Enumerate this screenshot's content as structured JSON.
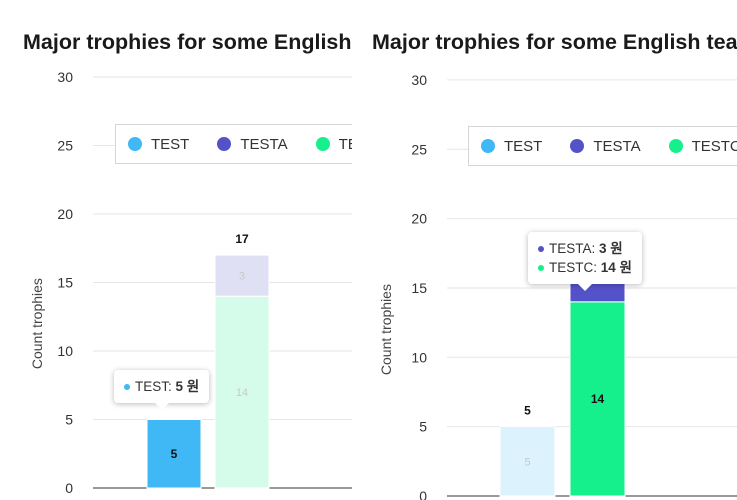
{
  "colors": {
    "TEST": "#3fb8f5",
    "TESTA": "#5452c9",
    "TESTC": "#16f08c",
    "axis": "#333333",
    "grid": "#e6e6e6"
  },
  "chart_data": [
    {
      "type": "bar",
      "title": "Major trophies for some English teams",
      "ylabel": "Count trophies",
      "ylim": [
        0,
        30
      ],
      "yticks": [
        "0",
        "5",
        "10",
        "15",
        "20",
        "25",
        "30"
      ],
      "legend": [
        "TEST",
        "TESTA",
        "TESTC"
      ],
      "legend_position": "top",
      "stacks": [
        {
          "total_label": "",
          "segments": [
            {
              "series": "TEST",
              "value": 5,
              "label": "5"
            }
          ],
          "highlight": true
        },
        {
          "total_label": "17",
          "segments": [
            {
              "series": "TESTC",
              "value": 0,
              "label": "0"
            },
            {
              "series": "TESTC",
              "value": 14,
              "label": "14"
            },
            {
              "series": "TESTA",
              "value": 3,
              "label": "3"
            }
          ],
          "highlight": false
        }
      ],
      "tooltip": {
        "rows": [
          {
            "series": "TEST",
            "name": "TEST",
            "value": "5 원"
          }
        ]
      }
    },
    {
      "type": "bar",
      "title": "Major trophies for some English teams",
      "ylabel": "Count trophies",
      "ylim": [
        0,
        30
      ],
      "yticks": [
        "0",
        "5",
        "10",
        "15",
        "20",
        "25",
        "30"
      ],
      "legend": [
        "TEST",
        "TESTA",
        "TESTC"
      ],
      "legend_position": "top",
      "stacks": [
        {
          "total_label": "5",
          "segments": [
            {
              "series": "TEST",
              "value": 5,
              "label": "5"
            }
          ],
          "highlight": false
        },
        {
          "total_label": "",
          "segments": [
            {
              "series": "TESTC",
              "value": 0,
              "label": "0"
            },
            {
              "series": "TESTC",
              "value": 14,
              "label": "14"
            },
            {
              "series": "TESTA",
              "value": 3,
              "label": ""
            }
          ],
          "highlight": true
        }
      ],
      "tooltip": {
        "rows": [
          {
            "series": "TESTA",
            "name": "TESTA",
            "value": "3 원"
          },
          {
            "series": "TESTC",
            "name": "TESTC",
            "value": "14 원"
          }
        ]
      }
    }
  ]
}
